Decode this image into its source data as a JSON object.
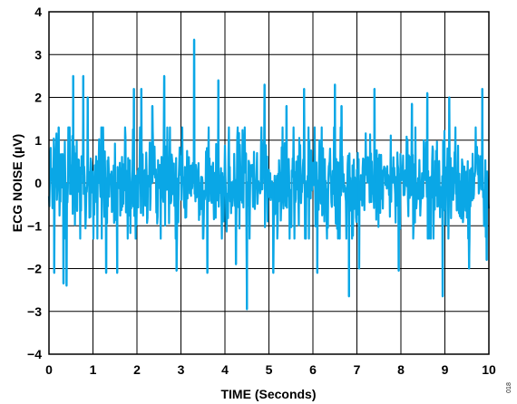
{
  "chart_data": {
    "type": "line",
    "title": "",
    "xlabel": "TIME (Seconds)",
    "ylabel": "ECG NOISE (µV)",
    "xlim": [
      0,
      10
    ],
    "ylim": [
      -4,
      4
    ],
    "x_ticks": [
      "0",
      "1",
      "2",
      "3",
      "4",
      "5",
      "6",
      "7",
      "8",
      "9",
      "10"
    ],
    "y_ticks": [
      "4",
      "3",
      "2",
      "1",
      "0",
      "−1",
      "−2",
      "−3",
      "−4"
    ],
    "grid": true,
    "legend": "none",
    "series": [
      {
        "color": "#0aa7e6",
        "sampling": "dense noise, approx. 1000 samples from 0 to 10 s",
        "typical_range": [
          -1.3,
          1.3
        ],
        "peaks": [
          {
            "x": 0.12,
            "y": -2.1
          },
          {
            "x": 0.22,
            "y": 1.3
          },
          {
            "x": 0.33,
            "y": -2.35
          },
          {
            "x": 0.4,
            "y": -2.4
          },
          {
            "x": 0.55,
            "y": 2.5
          },
          {
            "x": 0.78,
            "y": 2.5
          },
          {
            "x": 0.88,
            "y": 2.0
          },
          {
            "x": 1.3,
            "y": -2.1
          },
          {
            "x": 1.55,
            "y": -2.1
          },
          {
            "x": 1.93,
            "y": 2.2
          },
          {
            "x": 2.1,
            "y": 2.2
          },
          {
            "x": 2.35,
            "y": 1.8
          },
          {
            "x": 2.62,
            "y": 2.5
          },
          {
            "x": 2.9,
            "y": -2.05
          },
          {
            "x": 3.3,
            "y": 3.35
          },
          {
            "x": 3.6,
            "y": -2.1
          },
          {
            "x": 3.85,
            "y": 2.4
          },
          {
            "x": 4.25,
            "y": -1.9
          },
          {
            "x": 4.5,
            "y": -2.95
          },
          {
            "x": 4.9,
            "y": 2.3
          },
          {
            "x": 5.1,
            "y": -2.1
          },
          {
            "x": 5.4,
            "y": 1.8
          },
          {
            "x": 5.8,
            "y": 2.2
          },
          {
            "x": 6.1,
            "y": -2.1
          },
          {
            "x": 6.5,
            "y": 2.3
          },
          {
            "x": 6.65,
            "y": 1.8
          },
          {
            "x": 6.82,
            "y": -2.65
          },
          {
            "x": 7.05,
            "y": -2.0
          },
          {
            "x": 7.4,
            "y": 2.2
          },
          {
            "x": 7.95,
            "y": -2.05
          },
          {
            "x": 8.25,
            "y": 1.85
          },
          {
            "x": 8.6,
            "y": 2.1
          },
          {
            "x": 8.95,
            "y": -2.65
          },
          {
            "x": 9.1,
            "y": 2.0
          },
          {
            "x": 9.55,
            "y": -2.0
          },
          {
            "x": 9.85,
            "y": 2.2
          },
          {
            "x": 9.95,
            "y": -1.8
          }
        ]
      }
    ]
  },
  "figure_code": "018"
}
